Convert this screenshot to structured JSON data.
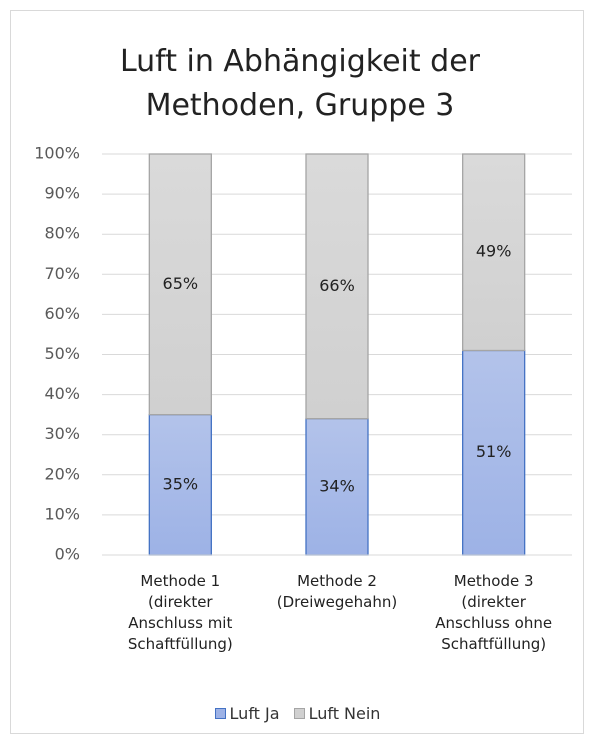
{
  "chart_data": {
    "type": "stacked_bar",
    "title": "Luft in Abhängigkeit der Methoden, Gruppe 3",
    "categories": [
      "Methode 1 (direkter Anschluss mit Schaftfüllung)",
      "Methode 2 (Dreiwegehahn)",
      "Methode 3 (direkter Anschluss ohne Schaftfüllung)"
    ],
    "series": [
      {
        "name": "Luft Ja",
        "color": "#9db2e6",
        "values": [
          35,
          34,
          51
        ],
        "value_labels": [
          "35%",
          "34%",
          "51%"
        ]
      },
      {
        "name": "Luft Nein",
        "color": "#d0d0d0",
        "values": [
          65,
          66,
          49
        ],
        "value_labels": [
          "65%",
          "66%",
          "49%"
        ]
      }
    ],
    "ylim": [
      0,
      100
    ],
    "yticks": [
      {
        "value": 0,
        "label": "0%"
      },
      {
        "value": 10,
        "label": "10%"
      },
      {
        "value": 20,
        "label": "20%"
      },
      {
        "value": 30,
        "label": "30%"
      },
      {
        "value": 40,
        "label": "40%"
      },
      {
        "value": 50,
        "label": "50%"
      },
      {
        "value": 60,
        "label": "60%"
      },
      {
        "value": 70,
        "label": "70%"
      },
      {
        "value": 80,
        "label": "80%"
      },
      {
        "value": 90,
        "label": "90%"
      },
      {
        "value": 100,
        "label": "100%"
      }
    ],
    "grid": true,
    "legend": "bottom"
  }
}
